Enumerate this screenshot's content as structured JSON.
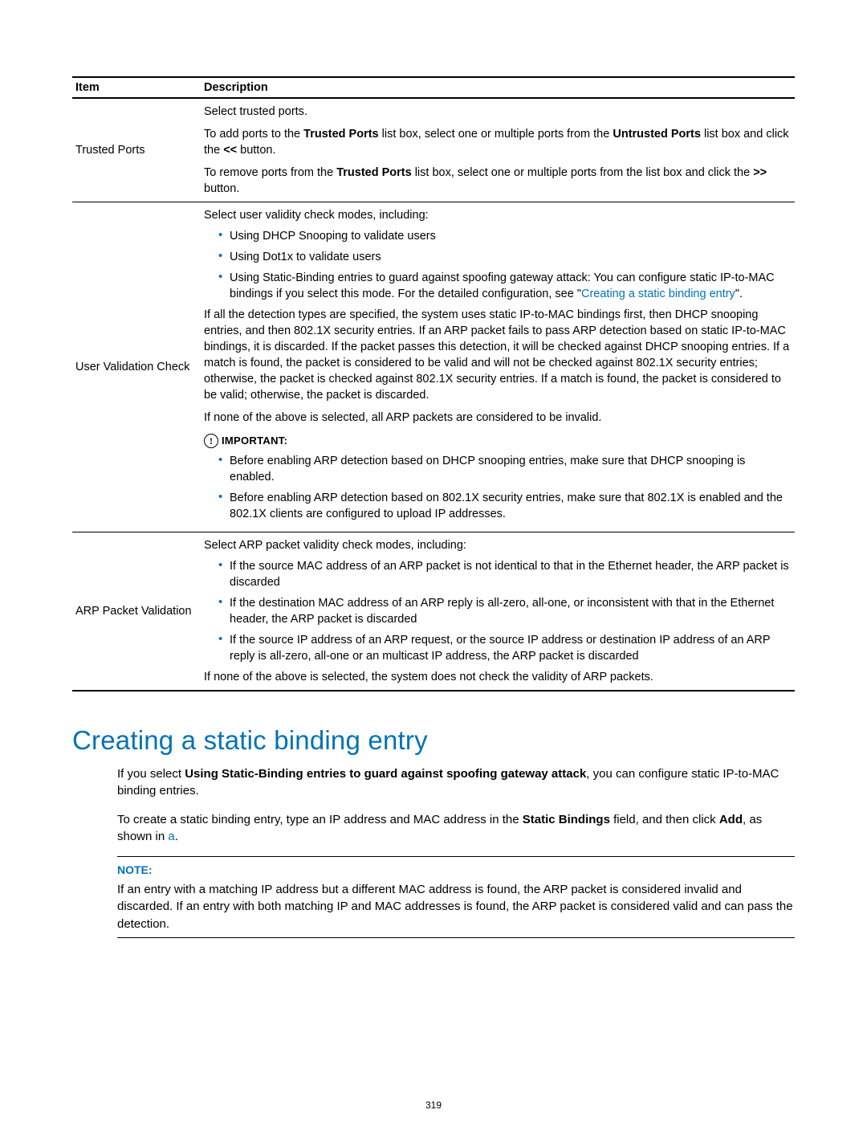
{
  "accent_color": "#0073b5",
  "table": {
    "headers": [
      "Item",
      "Description"
    ],
    "rows": [
      {
        "item": "Trusted Ports",
        "p1": "Select trusted ports.",
        "p2a": "To add ports to the ",
        "p2b_bold": "Trusted Ports",
        "p2c": " list box, select one or multiple ports from the ",
        "p2d_bold": "Untrusted Ports",
        "p2e": " list box and click the ",
        "p2f_bold": "<<",
        "p2g": " button.",
        "p3a": "To remove ports from the ",
        "p3b_bold": "Trusted Ports",
        "p3c": " list box, select one or multiple ports from the list box and click the ",
        "p3d_bold": ">>",
        "p3e": " button."
      },
      {
        "item": "User Validation Check",
        "p1": "Select user validity check modes, including:",
        "li1": "Using DHCP Snooping to validate users",
        "li2": "Using Dot1x to validate users",
        "li3a": "Using Static-Binding entries to guard against spoofing gateway attack: You can configure static IP-to-MAC bindings if you select this mode. For the detailed configuration, see \"",
        "li3_link": "Creating a static binding entry",
        "li3b": "\".",
        "p2": "If all the detection types are specified, the system uses static IP-to-MAC bindings first, then DHCP snooping entries, and then 802.1X security entries. If an ARP packet fails to pass ARP detection based on static IP-to-MAC bindings, it is discarded. If the packet passes this detection, it will be checked against DHCP snooping entries. If a match is found, the packet is considered to be valid and will not be checked against 802.1X security entries; otherwise, the packet is checked against 802.1X security entries. If a match is found, the packet is considered to be valid; otherwise, the packet is discarded.",
        "p3": "If none of the above is selected, all ARP packets are considered to be invalid.",
        "important_label": "IMPORTANT:",
        "imp_li1": "Before enabling ARP detection based on DHCP snooping entries, make sure that DHCP snooping is enabled.",
        "imp_li2": "Before enabling ARP detection based on 802.1X security entries, make sure that 802.1X is enabled and the 802.1X clients are configured to upload IP addresses."
      },
      {
        "item": "ARP Packet Validation",
        "p1": "Select ARP packet validity check modes, including:",
        "li1": "If the source MAC address of an ARP packet is not identical to that in the Ethernet header, the ARP packet is discarded",
        "li2": "If the destination MAC address of an ARP reply is all-zero, all-one, or inconsistent with that in the Ethernet header, the ARP packet is discarded",
        "li3": "If the source IP address of an ARP request, or the source IP address or destination IP address of an ARP reply is all-zero, all-one or an multicast IP address, the ARP packet is discarded",
        "p2": "If none of the above is selected, the system does not check the validity of ARP packets."
      }
    ]
  },
  "section_title": "Creating a static binding entry",
  "body": {
    "p1a": "If you select ",
    "p1b_bold": "Using Static-Binding entries to guard against spoofing gateway attack",
    "p1c": ", you can configure static IP-to-MAC binding entries.",
    "p2a": "To create a static binding entry, type an IP address and MAC address in the ",
    "p2b_bold": "Static Bindings",
    "p2c": " field, and then click ",
    "p2d_bold": "Add",
    "p2e": ", as shown in ",
    "p2f_link": "a",
    "p2g": "."
  },
  "note": {
    "label": "NOTE:",
    "body": "If an entry with a matching IP address but a different MAC address is found, the ARP packet is considered invalid and discarded. If an entry with both matching IP and MAC addresses is found, the ARP packet is considered valid and can pass the detection."
  },
  "page_number": "319"
}
